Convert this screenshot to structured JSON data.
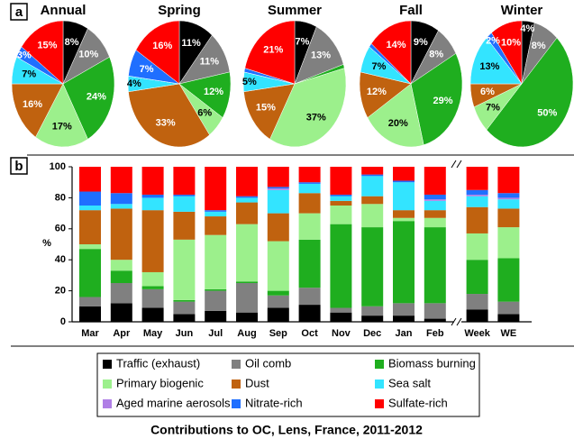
{
  "panels": [
    "a",
    "b"
  ],
  "caption": "Contributions to OC, Lens, France, 2011-2012",
  "chart_data": [
    {
      "type": "pie",
      "title": "Annual",
      "values": [
        8,
        10,
        24,
        17,
        16,
        7,
        0,
        3,
        15
      ],
      "value_labels": [
        "8%",
        "10%",
        "24%",
        "17%",
        "16%",
        "7%",
        null,
        "3%",
        "15%"
      ]
    },
    {
      "type": "pie",
      "title": "Spring",
      "values": [
        11,
        11,
        12,
        6,
        33,
        4,
        0,
        7,
        16
      ],
      "value_labels": [
        "11%",
        "11%",
        "12%",
        "6%",
        "33%",
        "4%",
        null,
        "7%",
        "16%"
      ]
    },
    {
      "type": "pie",
      "title": "Summer",
      "values": [
        7,
        13,
        1,
        37,
        15,
        5,
        0,
        1,
        21
      ],
      "value_labels": [
        "7%",
        "13%",
        null,
        "37%",
        "15%",
        "5%",
        null,
        null,
        "21%"
      ]
    },
    {
      "type": "pie",
      "title": "Fall",
      "values": [
        9,
        8,
        29,
        20,
        12,
        7,
        0,
        1,
        14
      ],
      "value_labels": [
        "9%",
        "8%",
        "29%",
        "20%",
        "12%",
        "7%",
        null,
        null,
        "14%"
      ]
    },
    {
      "type": "pie",
      "title": "Winter",
      "values": [
        4,
        8,
        50,
        7,
        6,
        13,
        0,
        2,
        10
      ],
      "value_labels": [
        "4%",
        "8%",
        "50%",
        "7%",
        "6%",
        "13%",
        null,
        "2%",
        "10%"
      ]
    },
    {
      "type": "bar",
      "stacked": true,
      "ylabel": "%",
      "categories": [
        "Mar",
        "Apr",
        "May",
        "Jun",
        "Jul",
        "Aug",
        "Sep",
        "Oct",
        "Nov",
        "Dec",
        "Jan",
        "Feb",
        "Week",
        "WE"
      ],
      "ylim": [
        0,
        100
      ],
      "yticks": [
        0,
        20,
        40,
        60,
        80,
        100
      ],
      "series": [
        {
          "name": "Traffic (exhaust)",
          "color": "#000000",
          "values": [
            10,
            12,
            9,
            5,
            7,
            6,
            9,
            11,
            6,
            4,
            4,
            2,
            8,
            5
          ]
        },
        {
          "name": "Oil comb",
          "color": "#808080",
          "values": [
            6,
            13,
            12,
            8,
            13,
            19,
            8,
            11,
            3,
            6,
            8,
            10,
            10,
            8
          ]
        },
        {
          "name": "Biomass burning",
          "color": "#1fae1f",
          "values": [
            31,
            8,
            2,
            1,
            1,
            1,
            3,
            31,
            54,
            51,
            53,
            49,
            22,
            28
          ]
        },
        {
          "name": "Primary biogenic",
          "color": "#9cf08c",
          "values": [
            3,
            7,
            9,
            39,
            35,
            37,
            32,
            17,
            12,
            15,
            2,
            6,
            17,
            20
          ]
        },
        {
          "name": "Dust",
          "color": "#c0620f",
          "values": [
            22,
            33,
            40,
            18,
            12,
            14,
            18,
            13,
            3,
            5,
            5,
            5,
            17,
            12
          ]
        },
        {
          "name": "Sea salt",
          "color": "#33e4ff",
          "values": [
            3,
            3,
            8,
            10,
            3,
            3,
            15,
            6,
            3,
            13,
            18,
            6,
            7,
            6
          ]
        },
        {
          "name": "Aged marine aerosols",
          "color": "#b07fe6",
          "values": [
            0,
            0,
            0,
            0,
            0,
            0,
            1,
            0,
            0,
            0,
            0,
            1,
            1,
            1
          ]
        },
        {
          "name": "Nitrate-rich",
          "color": "#1f6fff",
          "values": [
            9,
            7,
            2,
            1,
            1,
            1,
            1,
            1,
            1,
            1,
            1,
            3,
            3,
            3
          ]
        },
        {
          "name": "Sulfate-rich",
          "color": "#ff0000",
          "values": [
            16,
            17,
            18,
            18,
            28,
            19,
            13,
            10,
            18,
            5,
            9,
            18,
            15,
            17
          ]
        }
      ]
    }
  ]
}
